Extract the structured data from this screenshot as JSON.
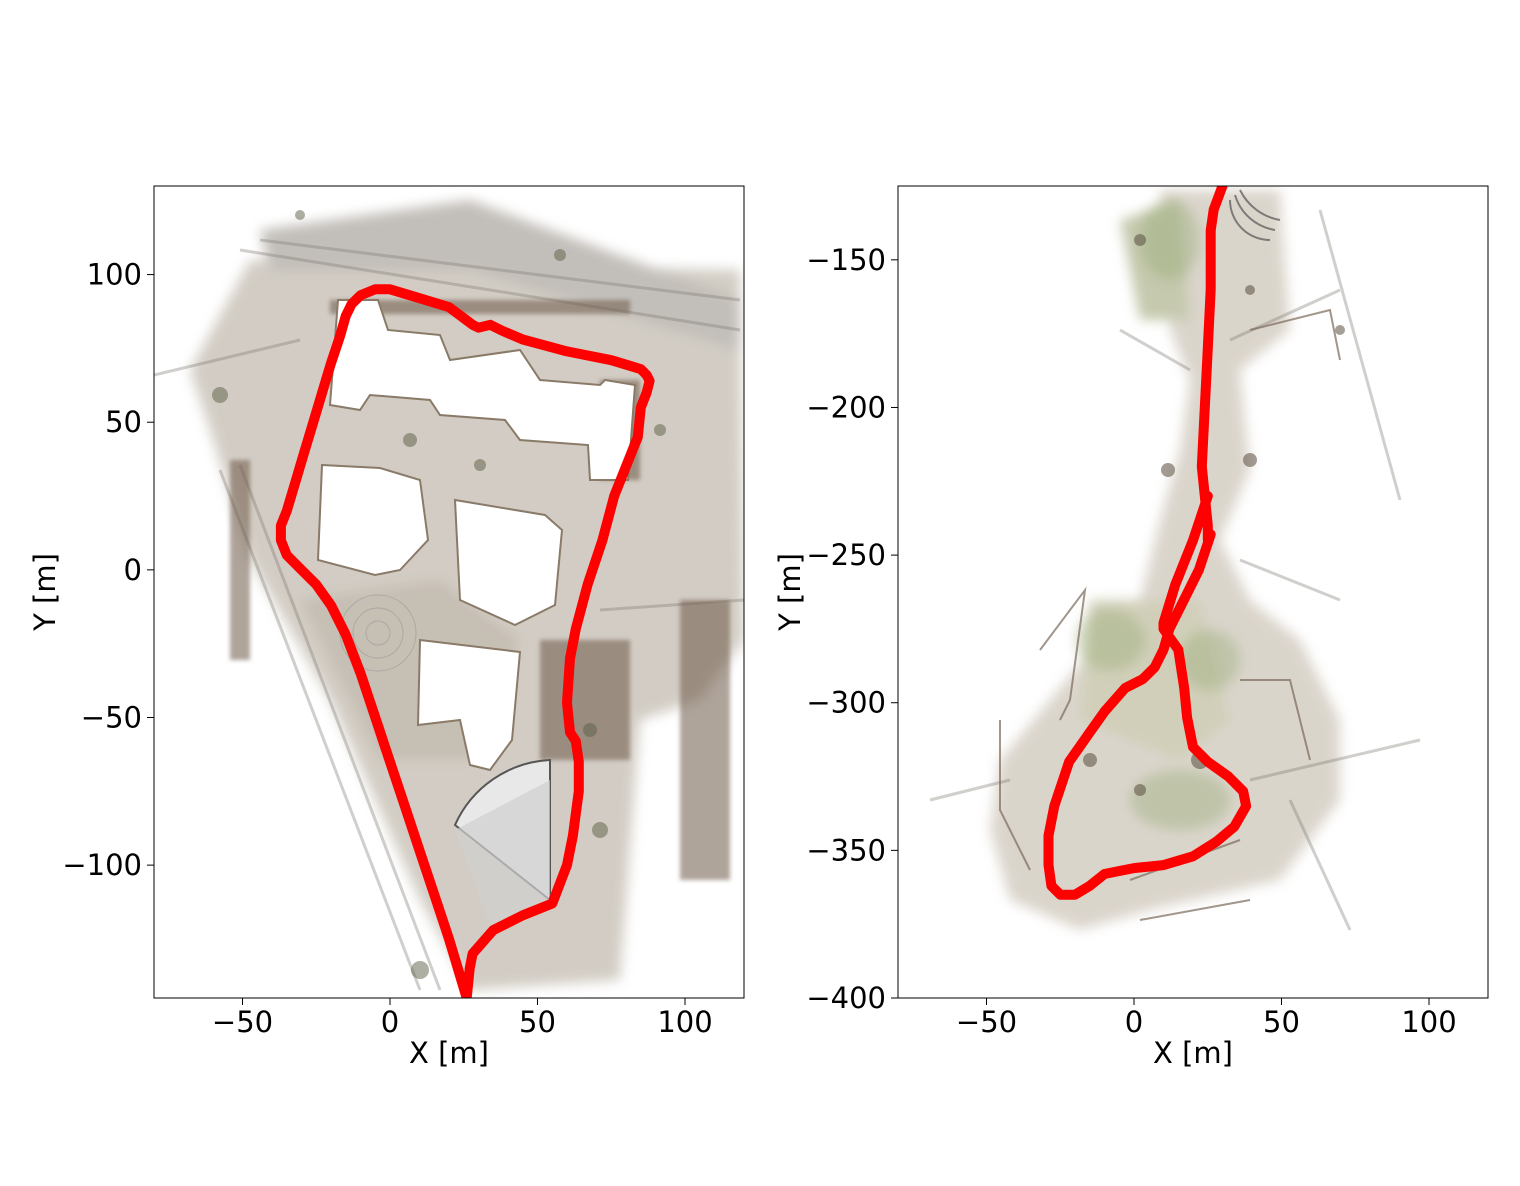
{
  "chart_data": [
    {
      "type": "line",
      "xlabel": "X [m]",
      "ylabel": "Y [m]",
      "xlim": [
        -80,
        120
      ],
      "ylim": [
        -145,
        130
      ],
      "xticks": [
        "−50",
        "0",
        "50",
        "100"
      ],
      "xtick_values": [
        -50,
        0,
        50,
        100
      ],
      "yticks": [
        "100",
        "50",
        "0",
        "−50",
        "−100"
      ],
      "ytick_values": [
        100,
        50,
        0,
        -50,
        -100
      ],
      "grid": false,
      "background": "colored 3D point-cloud map (top-down view)",
      "series": [
        {
          "color": "#ff0000",
          "x": [
            26,
            27,
            28,
            35,
            45,
            55,
            60,
            62,
            64,
            64,
            63,
            61,
            60,
            61,
            63,
            67,
            72,
            76,
            80,
            82,
            84,
            85,
            87,
            88,
            87,
            85,
            75,
            60,
            45,
            38,
            34,
            30,
            28,
            20,
            10,
            0,
            -5,
            -10,
            -13,
            -15,
            -17,
            -20,
            -23,
            -26,
            -29,
            -32,
            -35,
            -37,
            -37,
            -35,
            -30,
            -25,
            -20,
            -15,
            -10,
            -5,
            0,
            5,
            10,
            15,
            20,
            23,
            26
          ],
          "y": [
            -145,
            -135,
            -130,
            -122,
            -117,
            -113,
            -100,
            -90,
            -75,
            -65,
            -58,
            -55,
            -45,
            -30,
            -20,
            -5,
            10,
            25,
            35,
            40,
            45,
            55,
            60,
            64,
            66,
            68,
            71,
            74,
            78,
            81,
            83,
            82,
            83,
            89,
            92,
            95,
            95,
            93,
            90,
            86,
            79,
            70,
            60,
            50,
            40,
            30,
            20,
            15,
            10,
            5,
            0,
            -5,
            -12,
            -22,
            -35,
            -50,
            -65,
            -80,
            -95,
            -110,
            -125,
            -135,
            -145
          ]
        }
      ]
    },
    {
      "type": "line",
      "xlabel": "X [m]",
      "ylabel": "Y [m]",
      "xlim": [
        -80,
        120
      ],
      "ylim": [
        -400,
        -125
      ],
      "xticks": [
        "−50",
        "0",
        "50",
        "100"
      ],
      "xtick_values": [
        -50,
        0,
        50,
        100
      ],
      "yticks": [
        "−150",
        "−200",
        "−250",
        "−300",
        "−350",
        "−400"
      ],
      "ytick_values": [
        -150,
        -200,
        -250,
        -300,
        -350,
        -400
      ],
      "grid": false,
      "background": "colored 3D point-cloud map (top-down view)",
      "series": [
        {
          "color": "#ff0000",
          "x": [
            30,
            27,
            26,
            26,
            25,
            24,
            23,
            24,
            25,
            25,
            26,
            22,
            17,
            12,
            10,
            7,
            3,
            -3,
            -10,
            -15,
            -22,
            -27,
            -29,
            -29,
            -28,
            -25,
            -20,
            -15,
            -10,
            -5,
            0,
            10,
            20,
            28,
            34,
            38,
            37,
            32,
            25,
            20,
            18,
            17,
            15,
            10,
            10,
            14,
            20,
            25
          ],
          "y": [
            -125,
            -133,
            -140,
            -160,
            -180,
            -200,
            -220,
            -230,
            -240,
            -245,
            -243,
            -255,
            -265,
            -275,
            -282,
            -288,
            -292,
            -295,
            -303,
            -310,
            -320,
            -335,
            -345,
            -355,
            -362,
            -365,
            -365,
            -362,
            -358,
            -357,
            -356,
            -355,
            -352,
            -347,
            -342,
            -335,
            -330,
            -325,
            -320,
            -315,
            -305,
            -295,
            -282,
            -275,
            -273,
            -260,
            -245,
            -230
          ]
        }
      ]
    }
  ]
}
